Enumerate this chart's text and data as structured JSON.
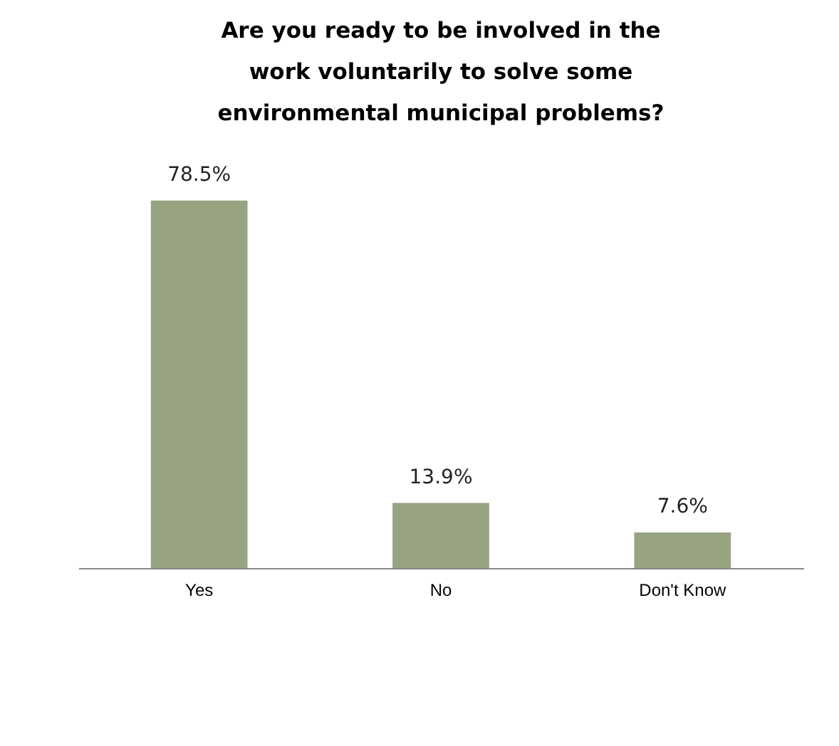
{
  "chart_data": {
    "type": "bar",
    "title": "Are you ready to be involved in the work voluntarily to solve some environmental municipal problems?",
    "categories": [
      "Yes",
      "No",
      "Don't Know"
    ],
    "values": [
      78.5,
      13.9,
      7.6
    ],
    "value_labels": [
      "78.5%",
      "13.9%",
      "7.6%"
    ],
    "color": "#98a382",
    "tick_labels": "x"
  }
}
